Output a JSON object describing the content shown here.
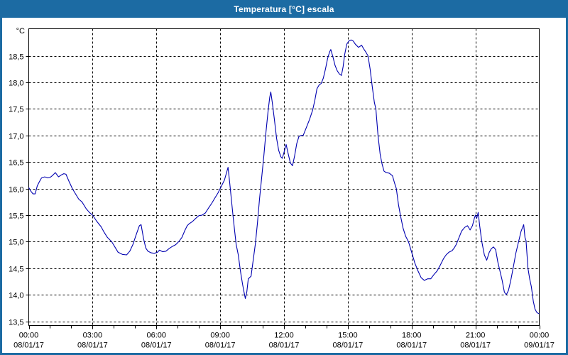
{
  "window": {
    "title": "Temperatura [°C] escala"
  },
  "colors": {
    "titlebar": "#1c6ba3",
    "frame": "#1c6ba3",
    "plot_background": "#ffffff",
    "axis": "#000000",
    "grid": "#000000",
    "line": "#0000b0"
  },
  "chart_data": {
    "type": "line",
    "title": "Temperatura [°C] escala",
    "xlabel": "",
    "ylabel": "°C",
    "unit_label": "°C",
    "legend": "none",
    "grid": "dashed",
    "x_range_hours": [
      0,
      24
    ],
    "x_major_step_hours": 3,
    "x_minor_step_hours": 1,
    "ylim": [
      13.42,
      19.01
    ],
    "y_axis_ticks": [
      {
        "value": 18.5,
        "label": "18,5"
      },
      {
        "value": 18.0,
        "label": "18,0"
      },
      {
        "value": 17.5,
        "label": "17,5"
      },
      {
        "value": 17.0,
        "label": "17,0"
      },
      {
        "value": 16.5,
        "label": "16,5"
      },
      {
        "value": 16.0,
        "label": "16,0"
      },
      {
        "value": 15.5,
        "label": "15,5"
      },
      {
        "value": 15.0,
        "label": "15,0"
      },
      {
        "value": 14.5,
        "label": "14,5"
      },
      {
        "value": 14.0,
        "label": "14,0"
      },
      {
        "value": 13.5,
        "label": "13,5"
      }
    ],
    "x_axis_ticks": [
      {
        "hour": 0,
        "time": "00:00",
        "date": "08/01/17"
      },
      {
        "hour": 3,
        "time": "03:00",
        "date": "08/01/17"
      },
      {
        "hour": 6,
        "time": "06:00",
        "date": "08/01/17"
      },
      {
        "hour": 9,
        "time": "09:00",
        "date": "08/01/17"
      },
      {
        "hour": 12,
        "time": "12:00",
        "date": "08/01/17"
      },
      {
        "hour": 15,
        "time": "15:00",
        "date": "08/01/17"
      },
      {
        "hour": 18,
        "time": "18:00",
        "date": "08/01/17"
      },
      {
        "hour": 21,
        "time": "21:00",
        "date": "08/01/17"
      },
      {
        "hour": 24,
        "time": "00:00",
        "date": "09/01/17"
      }
    ],
    "series": [
      {
        "name": "Temperatura",
        "color": "#0000b0",
        "points": [
          [
            0.0,
            16.02
          ],
          [
            0.1,
            15.95
          ],
          [
            0.2,
            15.9
          ],
          [
            0.3,
            15.9
          ],
          [
            0.4,
            16.05
          ],
          [
            0.5,
            16.13
          ],
          [
            0.6,
            16.2
          ],
          [
            0.75,
            16.22
          ],
          [
            0.9,
            16.2
          ],
          [
            1.0,
            16.21
          ],
          [
            1.1,
            16.24
          ],
          [
            1.25,
            16.3
          ],
          [
            1.4,
            16.22
          ],
          [
            1.55,
            16.26
          ],
          [
            1.65,
            16.28
          ],
          [
            1.75,
            16.27
          ],
          [
            1.9,
            16.13
          ],
          [
            2.05,
            16.0
          ],
          [
            2.2,
            15.9
          ],
          [
            2.35,
            15.8
          ],
          [
            2.5,
            15.75
          ],
          [
            2.7,
            15.62
          ],
          [
            2.85,
            15.55
          ],
          [
            3.0,
            15.5
          ],
          [
            3.2,
            15.38
          ],
          [
            3.4,
            15.28
          ],
          [
            3.55,
            15.17
          ],
          [
            3.7,
            15.08
          ],
          [
            3.9,
            15.0
          ],
          [
            4.05,
            14.9
          ],
          [
            4.2,
            14.8
          ],
          [
            4.4,
            14.76
          ],
          [
            4.6,
            14.75
          ],
          [
            4.75,
            14.82
          ],
          [
            4.9,
            14.95
          ],
          [
            5.05,
            15.13
          ],
          [
            5.2,
            15.3
          ],
          [
            5.28,
            15.32
          ],
          [
            5.4,
            15.05
          ],
          [
            5.5,
            14.88
          ],
          [
            5.6,
            14.82
          ],
          [
            5.75,
            14.79
          ],
          [
            5.9,
            14.78
          ],
          [
            6.05,
            14.8
          ],
          [
            6.15,
            14.84
          ],
          [
            6.3,
            14.81
          ],
          [
            6.45,
            14.82
          ],
          [
            6.6,
            14.87
          ],
          [
            6.75,
            14.91
          ],
          [
            6.9,
            14.94
          ],
          [
            7.05,
            15.0
          ],
          [
            7.2,
            15.08
          ],
          [
            7.35,
            15.22
          ],
          [
            7.45,
            15.3
          ],
          [
            7.55,
            15.34
          ],
          [
            7.7,
            15.38
          ],
          [
            7.85,
            15.44
          ],
          [
            8.0,
            15.49
          ],
          [
            8.15,
            15.5
          ],
          [
            8.3,
            15.54
          ],
          [
            8.45,
            15.63
          ],
          [
            8.6,
            15.72
          ],
          [
            8.75,
            15.82
          ],
          [
            8.9,
            15.92
          ],
          [
            9.0,
            16.0
          ],
          [
            9.1,
            16.08
          ],
          [
            9.2,
            16.16
          ],
          [
            9.3,
            16.3
          ],
          [
            9.37,
            16.4
          ],
          [
            9.45,
            16.1
          ],
          [
            9.5,
            15.9
          ],
          [
            9.6,
            15.5
          ],
          [
            9.68,
            15.2
          ],
          [
            9.75,
            14.95
          ],
          [
            9.85,
            14.75
          ],
          [
            9.95,
            14.45
          ],
          [
            10.05,
            14.2
          ],
          [
            10.12,
            14.05
          ],
          [
            10.18,
            13.93
          ],
          [
            10.25,
            14.05
          ],
          [
            10.32,
            14.3
          ],
          [
            10.45,
            14.35
          ],
          [
            10.55,
            14.65
          ],
          [
            10.65,
            14.95
          ],
          [
            10.75,
            15.35
          ],
          [
            10.85,
            15.8
          ],
          [
            10.95,
            16.2
          ],
          [
            11.05,
            16.6
          ],
          [
            11.15,
            17.05
          ],
          [
            11.25,
            17.45
          ],
          [
            11.33,
            17.72
          ],
          [
            11.38,
            17.82
          ],
          [
            11.45,
            17.62
          ],
          [
            11.55,
            17.3
          ],
          [
            11.65,
            16.95
          ],
          [
            11.75,
            16.72
          ],
          [
            11.85,
            16.6
          ],
          [
            11.92,
            16.57
          ],
          [
            12.0,
            16.68
          ],
          [
            12.1,
            16.83
          ],
          [
            12.2,
            16.65
          ],
          [
            12.3,
            16.48
          ],
          [
            12.4,
            16.43
          ],
          [
            12.5,
            16.62
          ],
          [
            12.6,
            16.85
          ],
          [
            12.7,
            16.98
          ],
          [
            12.8,
            17.0
          ],
          [
            12.9,
            17.0
          ],
          [
            13.05,
            17.15
          ],
          [
            13.2,
            17.3
          ],
          [
            13.35,
            17.48
          ],
          [
            13.45,
            17.66
          ],
          [
            13.55,
            17.88
          ],
          [
            13.65,
            17.95
          ],
          [
            13.75,
            17.98
          ],
          [
            13.85,
            18.08
          ],
          [
            13.95,
            18.25
          ],
          [
            14.05,
            18.45
          ],
          [
            14.15,
            18.58
          ],
          [
            14.2,
            18.62
          ],
          [
            14.3,
            18.48
          ],
          [
            14.4,
            18.32
          ],
          [
            14.5,
            18.22
          ],
          [
            14.6,
            18.16
          ],
          [
            14.7,
            18.13
          ],
          [
            14.78,
            18.3
          ],
          [
            14.85,
            18.52
          ],
          [
            14.95,
            18.72
          ],
          [
            15.05,
            18.78
          ],
          [
            15.15,
            18.8
          ],
          [
            15.25,
            18.78
          ],
          [
            15.35,
            18.72
          ],
          [
            15.5,
            18.66
          ],
          [
            15.65,
            18.7
          ],
          [
            15.75,
            18.63
          ],
          [
            15.85,
            18.57
          ],
          [
            15.95,
            18.5
          ],
          [
            16.05,
            18.25
          ],
          [
            16.15,
            17.92
          ],
          [
            16.25,
            17.62
          ],
          [
            16.32,
            17.5
          ],
          [
            16.42,
            17.0
          ],
          [
            16.52,
            16.65
          ],
          [
            16.6,
            16.48
          ],
          [
            16.7,
            16.33
          ],
          [
            16.8,
            16.3
          ],
          [
            16.95,
            16.29
          ],
          [
            17.1,
            16.24
          ],
          [
            17.2,
            16.1
          ],
          [
            17.28,
            16.0
          ],
          [
            17.38,
            15.7
          ],
          [
            17.48,
            15.48
          ],
          [
            17.6,
            15.25
          ],
          [
            17.72,
            15.1
          ],
          [
            17.85,
            15.0
          ],
          [
            18.0,
            14.8
          ],
          [
            18.15,
            14.6
          ],
          [
            18.3,
            14.45
          ],
          [
            18.45,
            14.32
          ],
          [
            18.6,
            14.27
          ],
          [
            18.75,
            14.3
          ],
          [
            18.9,
            14.3
          ],
          [
            19.05,
            14.38
          ],
          [
            19.2,
            14.45
          ],
          [
            19.35,
            14.56
          ],
          [
            19.5,
            14.68
          ],
          [
            19.62,
            14.75
          ],
          [
            19.75,
            14.8
          ],
          [
            19.9,
            14.83
          ],
          [
            20.0,
            14.88
          ],
          [
            20.1,
            14.95
          ],
          [
            20.2,
            15.05
          ],
          [
            20.35,
            15.2
          ],
          [
            20.5,
            15.27
          ],
          [
            20.63,
            15.3
          ],
          [
            20.75,
            15.22
          ],
          [
            20.86,
            15.3
          ],
          [
            20.95,
            15.44
          ],
          [
            21.0,
            15.5
          ],
          [
            21.06,
            15.44
          ],
          [
            21.13,
            15.55
          ],
          [
            21.2,
            15.3
          ],
          [
            21.3,
            15.0
          ],
          [
            21.42,
            14.75
          ],
          [
            21.53,
            14.65
          ],
          [
            21.65,
            14.8
          ],
          [
            21.75,
            14.87
          ],
          [
            21.85,
            14.9
          ],
          [
            21.95,
            14.85
          ],
          [
            22.05,
            14.62
          ],
          [
            22.15,
            14.45
          ],
          [
            22.25,
            14.28
          ],
          [
            22.36,
            14.05
          ],
          [
            22.45,
            14.0
          ],
          [
            22.55,
            14.08
          ],
          [
            22.65,
            14.25
          ],
          [
            22.77,
            14.5
          ],
          [
            22.9,
            14.78
          ],
          [
            23.03,
            15.0
          ],
          [
            23.15,
            15.2
          ],
          [
            23.27,
            15.32
          ],
          [
            23.33,
            15.08
          ],
          [
            23.38,
            15.02
          ],
          [
            23.47,
            14.5
          ],
          [
            23.55,
            14.3
          ],
          [
            23.63,
            14.15
          ],
          [
            23.72,
            13.88
          ],
          [
            23.8,
            13.73
          ],
          [
            23.88,
            13.67
          ],
          [
            23.95,
            13.65
          ],
          [
            24.0,
            13.64
          ]
        ]
      }
    ]
  }
}
